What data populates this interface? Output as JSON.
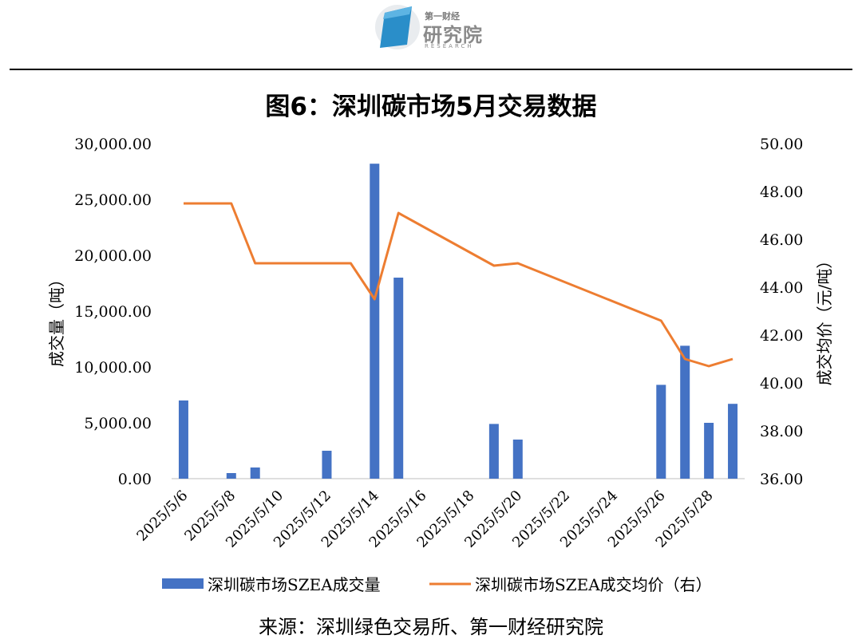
{
  "header": {
    "logo_top": "第一财经",
    "logo_main": "研究院",
    "logo_sub": "RESEARCH"
  },
  "title": "图6：深圳碳市场5月交易数据",
  "source": "来源：深圳绿色交易所、第一财经研究院",
  "colors": {
    "bar": "#4472c4",
    "line": "#ed7d31"
  },
  "chart_data": {
    "type": "bar+line",
    "x": [
      "2025/5/6",
      "2025/5/7",
      "2025/5/8",
      "2025/5/9",
      "2025/5/12",
      "2025/5/13",
      "2025/5/14",
      "2025/5/15",
      "2025/5/19",
      "2025/5/20",
      "2025/5/26",
      "2025/5/27",
      "2025/5/28",
      "2025/5/29"
    ],
    "dates_all": [
      "2025/5/6",
      "2025/5/7",
      "2025/5/8",
      "2025/5/9",
      "2025/5/10",
      "2025/5/11",
      "2025/5/12",
      "2025/5/13",
      "2025/5/14",
      "2025/5/15",
      "2025/5/16",
      "2025/5/17",
      "2025/5/18",
      "2025/5/19",
      "2025/5/20",
      "2025/5/21",
      "2025/5/22",
      "2025/5/23",
      "2025/5/24",
      "2025/5/25",
      "2025/5/26",
      "2025/5/27",
      "2025/5/28",
      "2025/5/29"
    ],
    "x_tick_labels": [
      "2025/5/6",
      "2025/5/8",
      "2025/5/10",
      "2025/5/12",
      "2025/5/14",
      "2025/5/16",
      "2025/5/18",
      "2025/5/20",
      "2025/5/22",
      "2025/5/24",
      "2025/5/26",
      "2025/5/28"
    ],
    "series": [
      {
        "name": "深圳碳市场SZEA成交量",
        "type": "bar",
        "axis": "left",
        "values": [
          7000,
          0,
          500,
          1000,
          2500,
          0,
          28200,
          18000,
          4900,
          3500,
          8400,
          11900,
          5000,
          6700
        ]
      },
      {
        "name": "深圳碳市场SZEA成交均价（右）",
        "type": "line",
        "axis": "right",
        "values": [
          47.5,
          47.5,
          47.5,
          45.0,
          45.0,
          45.0,
          43.5,
          47.1,
          44.9,
          45.0,
          42.6,
          41.0,
          40.7,
          41.0
        ]
      }
    ],
    "y_left": {
      "label": "成交量（吨）",
      "range": [
        0,
        30000
      ],
      "ticks": [
        "0.00",
        "5,000.00",
        "10,000.00",
        "15,000.00",
        "20,000.00",
        "25,000.00",
        "30,000.00"
      ]
    },
    "y_right": {
      "label": "成交均价（元/吨）",
      "range": [
        36,
        50
      ],
      "ticks": [
        "36.00",
        "38.00",
        "40.00",
        "42.00",
        "44.00",
        "46.00",
        "48.00",
        "50.00"
      ]
    },
    "legend": "bottom",
    "grid": false
  }
}
